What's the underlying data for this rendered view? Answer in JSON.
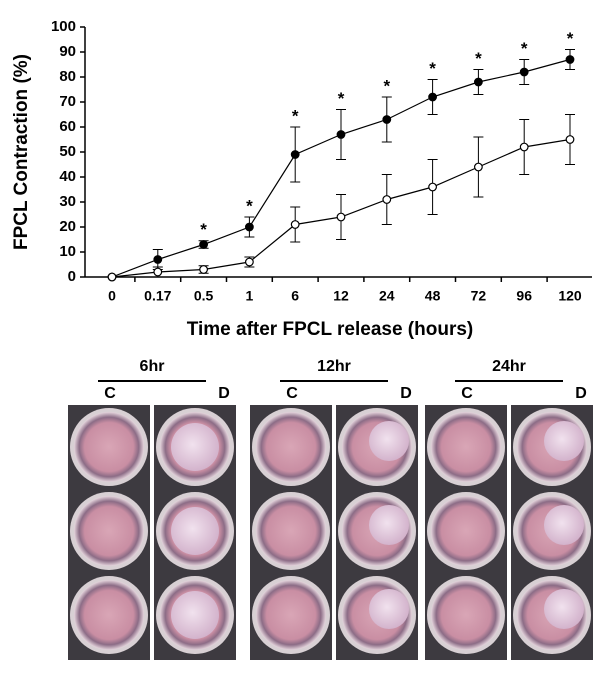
{
  "chart_data": {
    "type": "line",
    "x_label": "Time after FPCL release (hours)",
    "y_label": "FPCL Contraction (%)",
    "categories": [
      "0",
      "0.17",
      "0.5",
      "1",
      "6",
      "12",
      "24",
      "48",
      "72",
      "96",
      "120"
    ],
    "series": [
      {
        "color": "#000000",
        "marker": "filled",
        "values": [
          0,
          7,
          13,
          20,
          49,
          57,
          63,
          72,
          78,
          82,
          87
        ],
        "errors": [
          0,
          4,
          1.5,
          4,
          11,
          10,
          9,
          7,
          5,
          5,
          4
        ]
      },
      {
        "color": "#000000",
        "marker": "open",
        "values": [
          0,
          2,
          3,
          6,
          21,
          24,
          31,
          36,
          44,
          52,
          55
        ],
        "errors": [
          0,
          2,
          1.5,
          2,
          7,
          9,
          10,
          11,
          12,
          11,
          10
        ]
      }
    ],
    "significance": [
      null,
      null,
      "*",
      "*",
      "*",
      "*",
      "*",
      "*",
      "*",
      "*",
      "*"
    ],
    "ylim": [
      0,
      100
    ],
    "yticks": [
      0,
      10,
      20,
      30,
      40,
      50,
      60,
      70,
      80,
      90,
      100
    ]
  },
  "panels": [
    {
      "title": "6hr",
      "labels": [
        "C",
        "D"
      ]
    },
    {
      "title": "12hr",
      "labels": [
        "C",
        "D"
      ]
    },
    {
      "title": "24hr",
      "labels": [
        "C",
        "D"
      ]
    }
  ]
}
